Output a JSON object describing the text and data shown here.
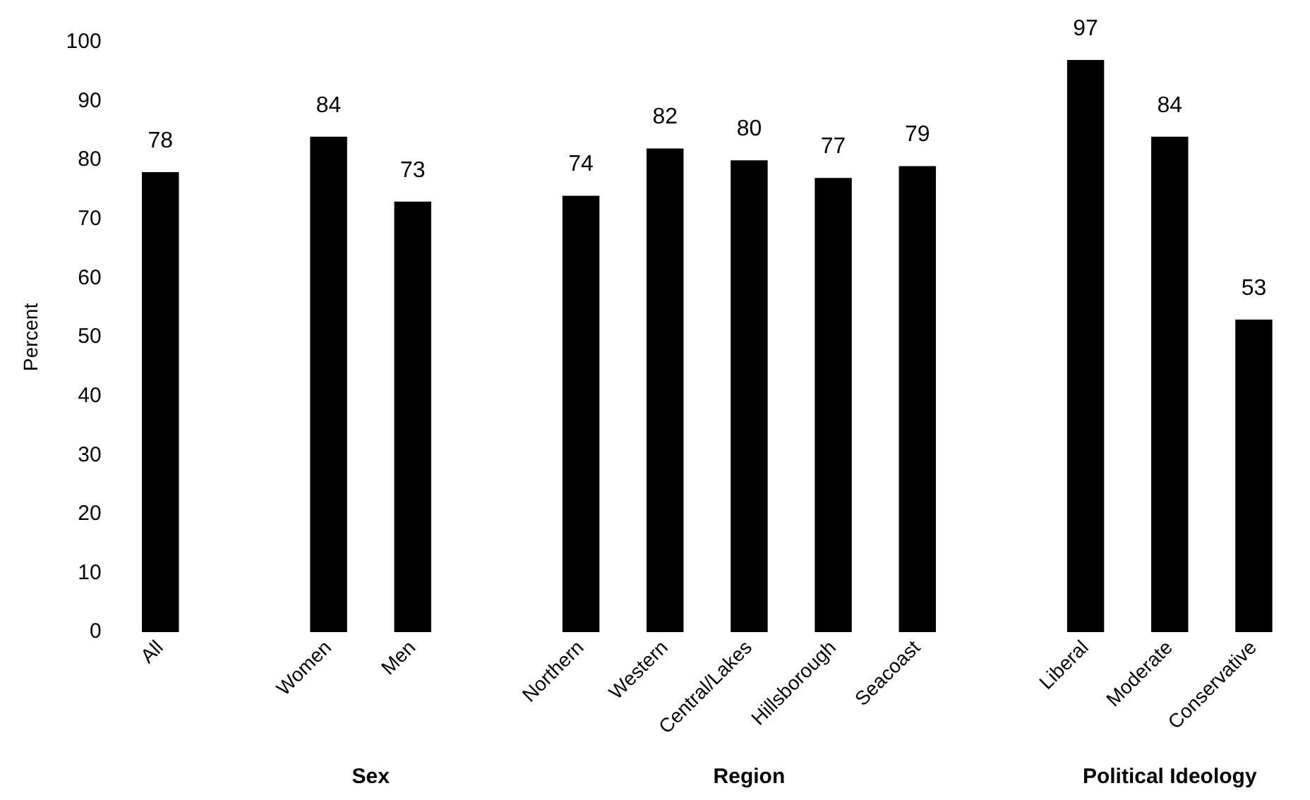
{
  "chart_data": {
    "type": "bar",
    "ylabel": "Percent",
    "categories": [
      "All",
      null,
      "Women",
      "Men",
      null,
      "Northern",
      "Western",
      "Central/Lakes",
      "Hillsborough",
      "Seacoast",
      null,
      "Liberal",
      "Moderate",
      "Conservative"
    ],
    "values": [
      78,
      null,
      84,
      73,
      null,
      74,
      82,
      80,
      77,
      79,
      null,
      97,
      84,
      53
    ],
    "color": "#000000",
    "ylim": [
      0,
      100
    ],
    "yticks": [
      0,
      10,
      20,
      30,
      40,
      50,
      60,
      70,
      80,
      90,
      100
    ],
    "grid": false,
    "legend": false,
    "data_labels": true,
    "annotations": [
      "Sex",
      "Region",
      "Political Ideology"
    ]
  }
}
